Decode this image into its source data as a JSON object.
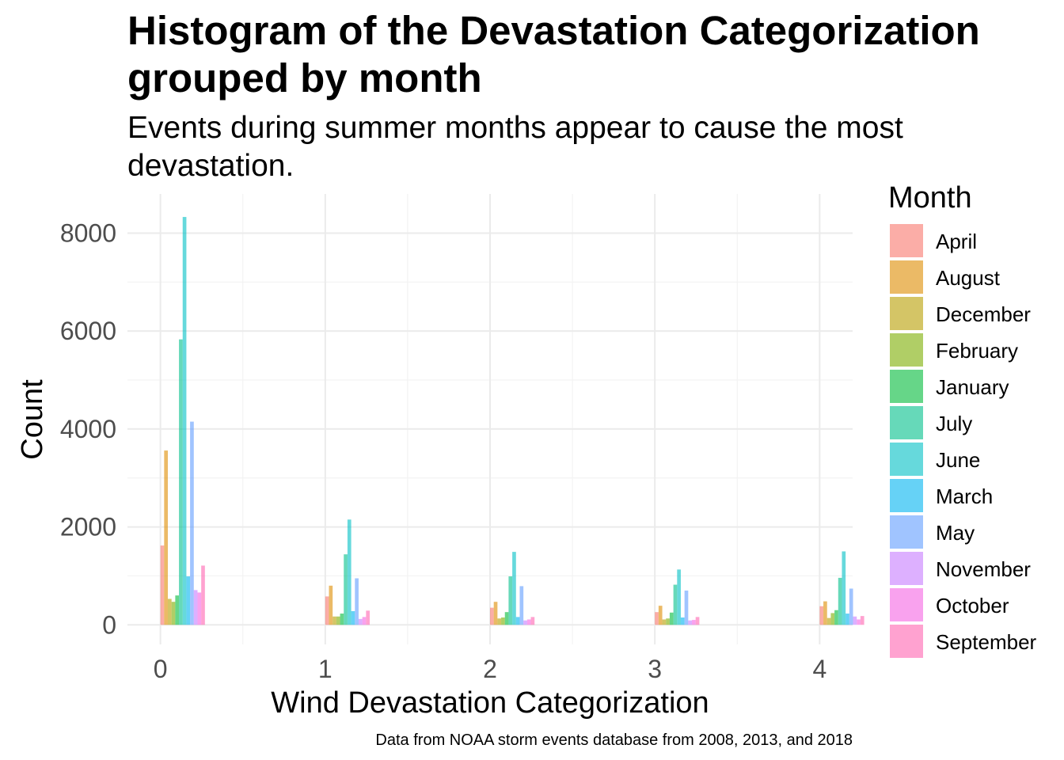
{
  "chart_data": {
    "type": "bar",
    "title": "Histogram of the Devastation Categorization",
    "title_line2": "grouped by month",
    "subtitle": "Events during summer months appear to cause the most",
    "subtitle_line2": "devastation.",
    "xlabel": "Wind Devastation Categorization",
    "ylabel": "Count",
    "caption": "Data from NOAA storm events database from 2008, 2013, and 2018",
    "legend_title": "Month",
    "legend_position": "right",
    "grid": true,
    "xlim": [
      -0.2,
      4.2
    ],
    "ylim": [
      -400,
      8800
    ],
    "x_ticks": [
      "0",
      "1",
      "2",
      "3",
      "4"
    ],
    "y_ticks": [
      "0",
      "2000",
      "4000",
      "6000",
      "8000"
    ],
    "categories": [
      0,
      1,
      2,
      3,
      4
    ],
    "series": [
      {
        "name": "April",
        "color": "#F8766D",
        "values": [
          1620,
          580,
          350,
          260,
          380
        ]
      },
      {
        "name": "August",
        "color": "#DE8C00",
        "values": [
          3560,
          800,
          470,
          390,
          480
        ]
      },
      {
        "name": "December",
        "color": "#B79F00",
        "values": [
          530,
          170,
          130,
          110,
          140
        ]
      },
      {
        "name": "February",
        "color": "#7CAE00",
        "values": [
          470,
          170,
          150,
          130,
          240
        ]
      },
      {
        "name": "January",
        "color": "#00BA38",
        "values": [
          600,
          230,
          260,
          250,
          300
        ]
      },
      {
        "name": "July",
        "color": "#00C08B",
        "values": [
          5830,
          1440,
          990,
          820,
          960
        ]
      },
      {
        "name": "June",
        "color": "#00BFC4",
        "values": [
          8330,
          2150,
          1490,
          1130,
          1500
        ]
      },
      {
        "name": "March",
        "color": "#00B4F0",
        "values": [
          990,
          280,
          160,
          150,
          230
        ]
      },
      {
        "name": "May",
        "color": "#619CFF",
        "values": [
          4150,
          950,
          790,
          700,
          740
        ]
      },
      {
        "name": "November",
        "color": "#C77CFF",
        "values": [
          710,
          120,
          90,
          90,
          170
        ]
      },
      {
        "name": "October",
        "color": "#F564E3",
        "values": [
          660,
          160,
          110,
          100,
          110
        ]
      },
      {
        "name": "September",
        "color": "#FF64B0",
        "values": [
          1210,
          290,
          160,
          160,
          180
        ]
      }
    ]
  }
}
